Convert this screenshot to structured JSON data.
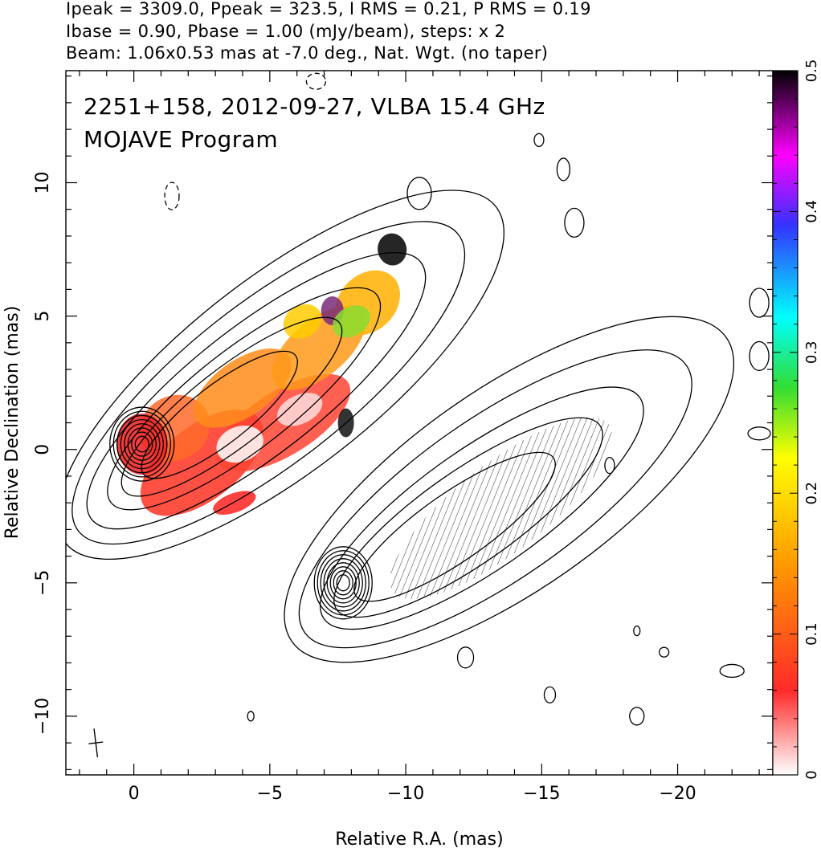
{
  "header": {
    "line1": "Ipeak = 3309.0, Ppeak = 323.5, I RMS = 0.21, P RMS = 0.19",
    "line2": "Ibase = 0.90, Pbase = 1.00 (mJy/beam), steps: x 2",
    "line3": "Beam: 1.06x0.53 mas at -7.0 deg., Nat. Wgt. (no taper)"
  },
  "chart_data": {
    "type": "heatmap",
    "annotation_line1": "2251+158, 2012-09-27, VLBA 15.4 GHz",
    "annotation_line2": "MOJAVE Program",
    "xlabel": "Relative R.A. (mas)",
    "ylabel": "Relative Declination (mas)",
    "xlim": [
      2.5,
      -23.5
    ],
    "ylim": [
      -12.2,
      14.2
    ],
    "x_ticks": [
      0,
      -5,
      -10,
      -15,
      -20
    ],
    "x_tick_labels": [
      "0",
      "−5",
      "−10",
      "−15",
      "−20"
    ],
    "y_ticks": [
      -10,
      -5,
      0,
      5,
      10
    ],
    "y_tick_labels": [
      "−10",
      "−5",
      "0",
      "5",
      "10"
    ],
    "colorbar": {
      "range": [
        0,
        0.5
      ],
      "ticks": [
        0,
        0.1,
        0.2,
        0.3,
        0.4,
        0.5
      ],
      "tick_labels": [
        "0",
        "0.1",
        "0.2",
        "0.3",
        "0.4",
        "0.5"
      ],
      "stops": [
        "#ffffff",
        "#ff1a1a",
        "#ff9900",
        "#ffff00",
        "#33dd33",
        "#00ffff",
        "#3333ff",
        "#ff00ff",
        "#000000"
      ]
    },
    "panels": [
      {
        "name": "fractional-polarization",
        "core": [
          -0.3,
          0.2
        ]
      },
      {
        "name": "polarization-vectors",
        "core": [
          -7.7,
          -5.0
        ]
      }
    ],
    "beam": {
      "major_mas": 1.06,
      "minor_mas": 0.53,
      "pa_deg": -7.0,
      "center": [
        1.4,
        -11.0
      ]
    }
  }
}
